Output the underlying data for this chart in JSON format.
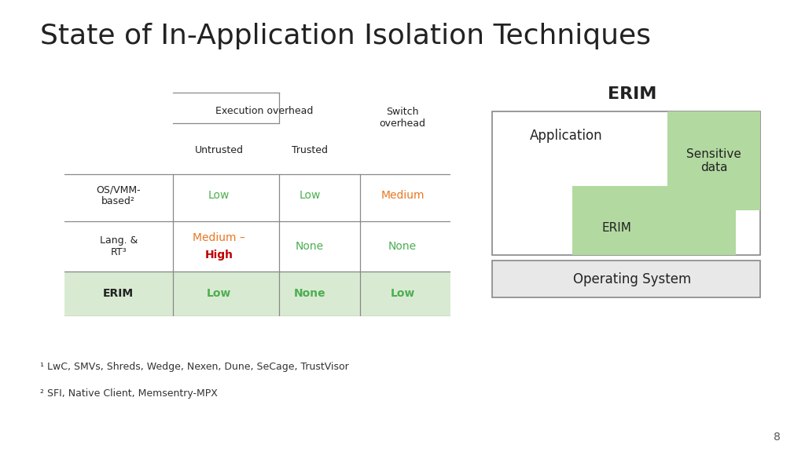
{
  "title": "State of In-Application Isolation Techniques",
  "title_fontsize": 26,
  "title_color": "#222222",
  "background_color": "#ffffff",
  "green": "#4CAF50",
  "orange": "#E87722",
  "red": "#C00000",
  "highlight_bg": "#d9ead3",
  "erim_diagram": {
    "title": "ERIM",
    "app_label": "Application",
    "erim_label": "ERIM",
    "sensitive_label": "Sensitive\ndata",
    "os_label": "Operating System",
    "erim_box_color": "#b2d9a0",
    "border_color": "#888888",
    "os_bg_color": "#e8e8e8"
  },
  "footnotes": [
    "¹ LwC, SMVs, Shreds, Wedge, Nexen, Dune, SeCage, TrustVisor",
    "² SFI, Native Client, Memsentry-MPX"
  ],
  "page_number": "8"
}
